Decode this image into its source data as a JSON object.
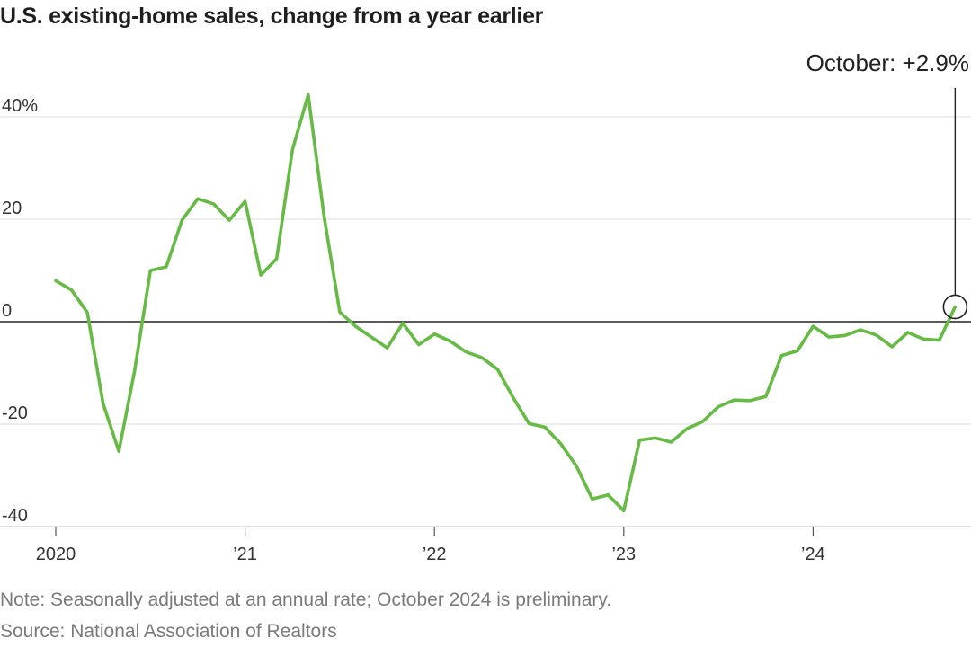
{
  "title": "U.S. existing-home sales, change from a year earlier",
  "note": "Note: Seasonally adjusted at an annual rate; October 2024 is preliminary.",
  "source": "Source: National Association of Realtors",
  "colors": {
    "line": "#66bb44",
    "grid": "#dddddd",
    "zero": "#222222",
    "axis": "#bbbbbb"
  },
  "chart_data": {
    "type": "line",
    "title": "U.S. existing-home sales, change from a year earlier",
    "xlabel": "",
    "ylabel": "",
    "ylim": [
      -40,
      45
    ],
    "y_ticks": [
      {
        "value": 40,
        "label": "40%"
      },
      {
        "value": 20,
        "label": "20"
      },
      {
        "value": 0,
        "label": "0"
      },
      {
        "value": -20,
        "label": "-20"
      },
      {
        "value": -40,
        "label": "-40"
      }
    ],
    "x_ticks": [
      {
        "value": 0,
        "label": "2020"
      },
      {
        "value": 12,
        "label": "’21"
      },
      {
        "value": 24,
        "label": "’22"
      },
      {
        "value": 36,
        "label": "’23"
      },
      {
        "value": 48,
        "label": "’24"
      }
    ],
    "grid": true,
    "legend": "none",
    "series": [
      {
        "start": "2020-01",
        "frequency": "monthly",
        "values": [
          8,
          6.2,
          1.8,
          -16,
          -25.3,
          -9.5,
          10,
          10.7,
          19.8,
          24,
          23,
          19.8,
          23.5,
          9.1,
          12.3,
          33.6,
          44.3,
          20.6,
          1.9,
          -0.9,
          -3,
          -5.1,
          -0.3,
          -4.5,
          -2.4,
          -3.8,
          -5.9,
          -7,
          -9.3,
          -14.9,
          -19.9,
          -20.6,
          -23.8,
          -28.2,
          -34.6,
          -33.8,
          -36.9,
          -23.1,
          -22.7,
          -23.5,
          -20.9,
          -19.5,
          -16.6,
          -15.3,
          -15.4,
          -14.6,
          -6.6,
          -5.7,
          -0.9,
          -3.0,
          -2.7,
          -1.6,
          -2.6,
          -4.9,
          -2.1,
          -3.4,
          -3.6,
          2.9
        ]
      }
    ],
    "annotation": {
      "text": "October: +2.9%",
      "target": "2024-10"
    }
  }
}
